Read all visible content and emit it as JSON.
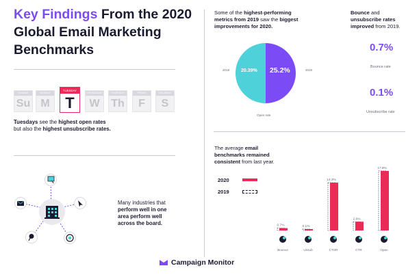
{
  "header": {
    "title_highlight": "Key Findings",
    "title_rest_1": " From the 2020",
    "title_rest_2": "Global Email Marketing",
    "title_rest_3": "Benchmarks"
  },
  "week": {
    "days": [
      {
        "name": "SUNDAY",
        "abbr": "Su"
      },
      {
        "name": "MONDAY",
        "abbr": "M"
      },
      {
        "name": "TUESDAY",
        "abbr": "T"
      },
      {
        "name": "WEDNESDAY",
        "abbr": "W"
      },
      {
        "name": "THURSDAY",
        "abbr": "Th"
      },
      {
        "name": "FRIDAY",
        "abbr": "F"
      },
      {
        "name": "SATURDAY",
        "abbr": "S"
      }
    ],
    "caption_1a": "Tuesdays",
    "caption_1b": " see the ",
    "caption_1c": "highest open rates",
    "caption_2a": "but also the ",
    "caption_2b": "highest unsubscribe rates."
  },
  "industries": {
    "line1": "Many industries that",
    "line2a": "perform well in one",
    "line3": "area perform well",
    "line4": "across the board."
  },
  "pie": {
    "text1a": "Some of the ",
    "text1b": "highest-performing",
    "text2a": "metrics from 2019",
    "text2b": " saw the ",
    "text2c": "biggest",
    "text3": "improvements for 2020.",
    "label_2019": "2019",
    "label_2020": "2020",
    "value_2019": "20.39%",
    "value_2020": "25.2%",
    "caption": "Open rate",
    "colors": {
      "y2019": "#4fd1d9",
      "y2020": "#7b4bf5"
    }
  },
  "rates": {
    "head1": "Bounce",
    "head1b": " and",
    "head2": "unsubscribe rates",
    "head3a": "improved",
    "head3b": " from 2019.",
    "bounce_value": "0.7%",
    "bounce_label": "Bounce rate",
    "unsub_value": "0.1%",
    "unsub_label": "Unsubscribe rate"
  },
  "consistent": {
    "line1a": "The average ",
    "line1b": "email",
    "line2": "benchmarks remained",
    "line3a": "consistent",
    "line3b": " from last year."
  },
  "chart_data": {
    "type": "bar",
    "categories": [
      "Bounce",
      "Unsub",
      "CTOR",
      "CTR",
      "Open"
    ],
    "series": [
      {
        "name": "2020",
        "values": [
          0.7,
          0.1,
          14.3,
          2.6,
          17.8
        ],
        "color": "#ea2a57"
      },
      {
        "name": "2019",
        "values": [
          0.7,
          0.1,
          14.3,
          2.6,
          17.8
        ],
        "color": "#ffffff"
      }
    ],
    "value_labels": [
      "0.7%",
      "0.1%",
      "14.3%",
      "2.6%",
      "17.8%"
    ],
    "legend": [
      "2020",
      "2019"
    ],
    "legend_position": "left"
  },
  "brand": {
    "name": "Campaign Monitor",
    "accent": "#7b4bf5",
    "pink": "#ea2a57"
  }
}
